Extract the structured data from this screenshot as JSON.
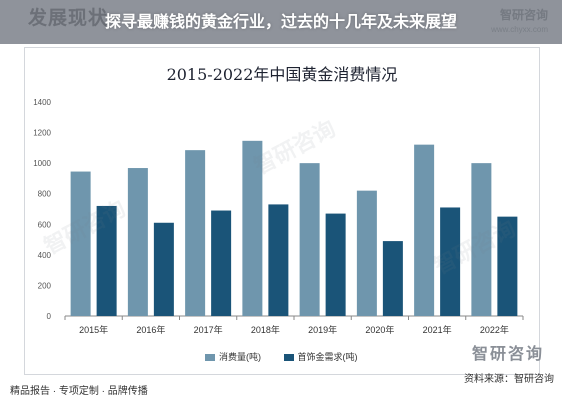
{
  "header": {
    "section_title": "发展现状",
    "headline": "探寻最赚钱的黄金行业，过去的十几年及未来展望",
    "logo_text": "智研咨询",
    "url": "www.chyxx.com"
  },
  "footer": {
    "left_text": "精品报告 · 专项定制 · 品牌传播",
    "source_text": "资料来源：智研咨询",
    "brand": "智研咨询"
  },
  "watermark": "智研咨询",
  "colors": {
    "consumption": "#6f96ad",
    "jewelry": "#1a5478",
    "axis": "#888888"
  },
  "chart_data": {
    "type": "bar",
    "title": "2015-2022年中国黄金消费情况",
    "categories": [
      "2015年",
      "2016年",
      "2017年",
      "2018年",
      "2019年",
      "2020年",
      "2021年",
      "2022年"
    ],
    "series": [
      {
        "name": "消费量(吨)",
        "values": [
          945,
          968,
          1085,
          1146,
          1000,
          820,
          1121,
          1000
        ]
      },
      {
        "name": "首饰金需求(吨)",
        "values": [
          720,
          610,
          690,
          730,
          670,
          490,
          710,
          650
        ]
      }
    ],
    "yticks": [
      0,
      200,
      400,
      600,
      800,
      1000,
      1200,
      1400
    ],
    "ylim": [
      0,
      1400
    ],
    "grid": false,
    "legend": "bottom"
  }
}
